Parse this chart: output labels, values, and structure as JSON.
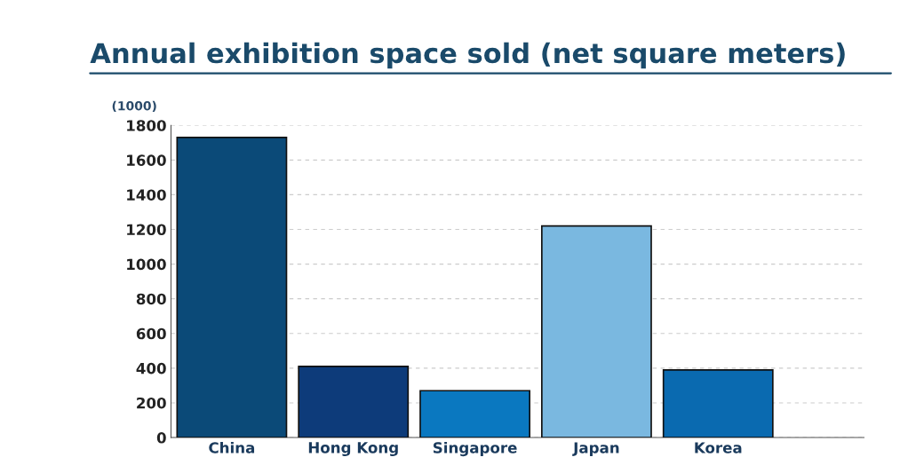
{
  "chart_data": {
    "type": "bar",
    "title": "Annual exhibition space sold (net square meters)",
    "ylabel": "(1000)",
    "categories": [
      "China",
      "Hong Kong",
      "Singapore",
      "Japan",
      "Korea"
    ],
    "values": [
      1730,
      410,
      270,
      1220,
      390
    ],
    "colors": [
      "#0b4a78",
      "#0d3b7a",
      "#0a78c0",
      "#7ab8e0",
      "#0a6ab0"
    ],
    "ylim": [
      0,
      1800
    ],
    "yticks": [
      0,
      200,
      400,
      600,
      800,
      1000,
      1200,
      1400,
      1600,
      1800
    ],
    "grid": "y"
  }
}
